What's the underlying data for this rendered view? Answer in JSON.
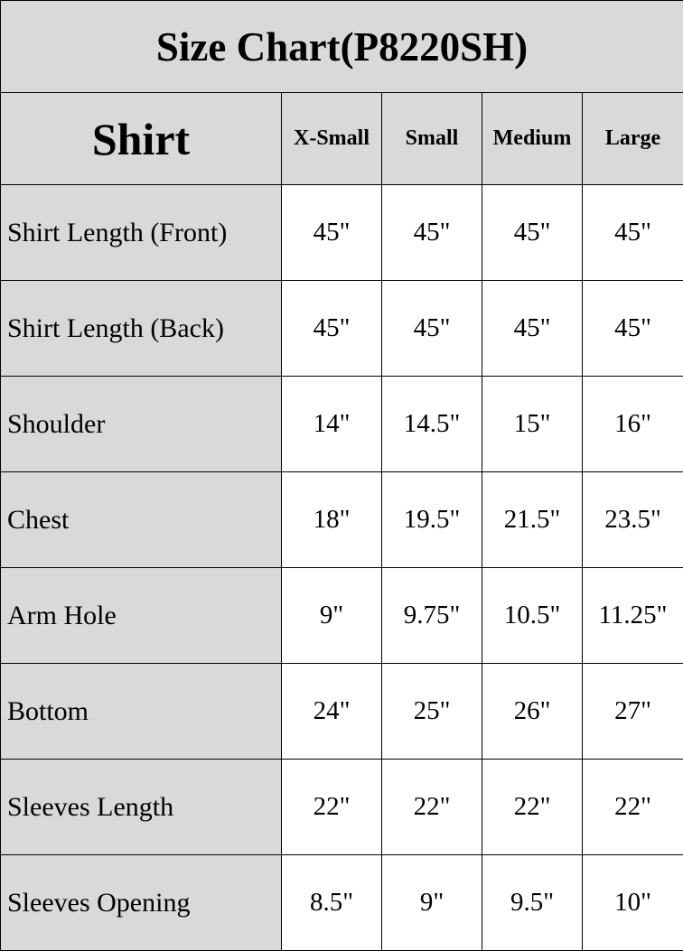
{
  "title": "Size Chart(P8220SH)",
  "header": {
    "category": "Shirt",
    "sizes": [
      "X-Small",
      "Small",
      "Medium",
      "Large"
    ]
  },
  "rows": [
    {
      "label": "Shirt Length (Front)",
      "values": [
        "45\"",
        "45\"",
        "45\"",
        "45\""
      ]
    },
    {
      "label": "Shirt Length (Back)",
      "values": [
        "45\"",
        "45\"",
        "45\"",
        "45\""
      ]
    },
    {
      "label": "Shoulder",
      "values": [
        "14\"",
        "14.5\"",
        "15\"",
        "16\""
      ]
    },
    {
      "label": "Chest",
      "values": [
        "18\"",
        "19.5\"",
        "21.5\"",
        "23.5\""
      ]
    },
    {
      "label": "Arm Hole",
      "values": [
        "9\"",
        "9.75\"",
        "10.5\"",
        "11.25\""
      ]
    },
    {
      "label": "Bottom",
      "values": [
        "24\"",
        "25\"",
        "26\"",
        "27\""
      ]
    },
    {
      "label": "Sleeves Length",
      "values": [
        "22\"",
        "22\"",
        "22\"",
        "22\""
      ]
    },
    {
      "label": "Sleeves Opening",
      "values": [
        "8.5\"",
        "9\"",
        "9.5\"",
        "10\""
      ]
    }
  ],
  "colors": {
    "header_bg": "#d9d9d9",
    "cell_bg": "#ffffff",
    "border": "#000000"
  }
}
